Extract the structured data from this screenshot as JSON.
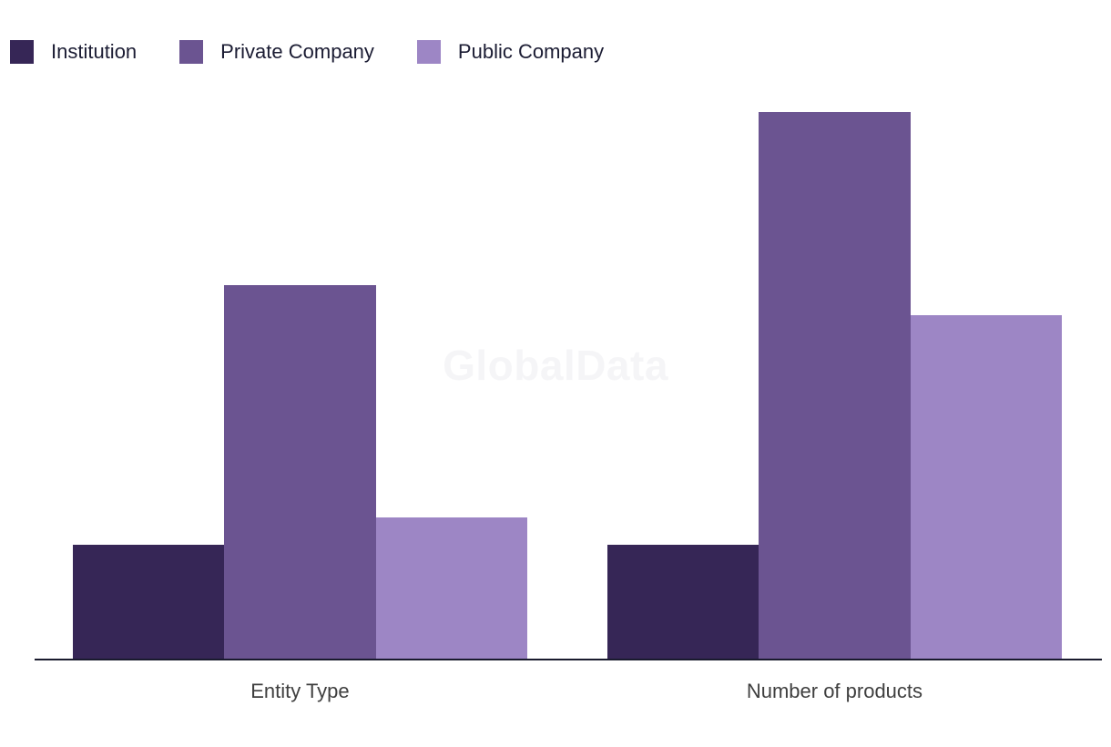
{
  "watermark": {
    "text": "GlobalData"
  },
  "legend": {
    "items": [
      {
        "label": "Institution",
        "color": "#362656"
      },
      {
        "label": "Private Company",
        "color": "#6B5491"
      },
      {
        "label": "Public Company",
        "color": "#9D86C5"
      }
    ]
  },
  "x_axis": {
    "categories": [
      "Entity Type",
      "Number of products"
    ]
  },
  "colors": {
    "background": "#FFFFFF",
    "axis_line": "#1A1B2E",
    "legend_text": "#1B1C33",
    "category_label": "#3F3F3F",
    "watermark": "#F5F5F7",
    "series_institution": "#362656",
    "series_private_company": "#6B5491",
    "series_public_company": "#9D86C5"
  },
  "chart_data": {
    "type": "bar",
    "categories": [
      "Entity Type",
      "Number of products"
    ],
    "series": [
      {
        "name": "Institution",
        "color": "#362656",
        "values": [
          20.8,
          20.8
        ]
      },
      {
        "name": "Private Company",
        "color": "#6B5491",
        "values": [
          68.3,
          100
        ]
      },
      {
        "name": "Public Company",
        "color": "#9D86C5",
        "values": [
          25.8,
          62.8
        ]
      }
    ],
    "title": "",
    "xlabel": "",
    "ylabel": "",
    "ylim": [
      0,
      104
    ],
    "y_axis_shown": false,
    "grid": false,
    "legend_position": "top-left",
    "value_note": "Y axis is unlabeled; values are relative estimates with the tallest bar (Private Company / Number of products) = 100"
  }
}
